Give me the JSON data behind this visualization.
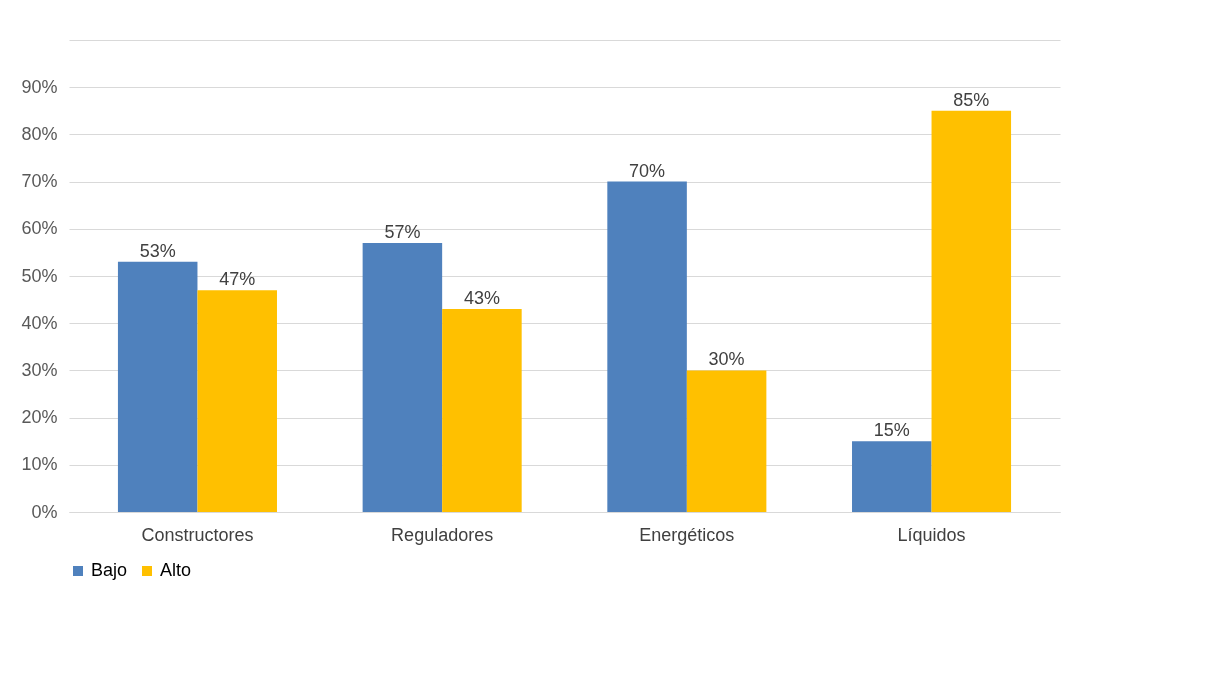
{
  "chart_data": {
    "type": "bar",
    "categories": [
      "Constructores",
      "Reguladores",
      "Energéticos",
      "Líquidos"
    ],
    "series": [
      {
        "name": "Bajo",
        "color": "#4f81bd",
        "values": [
          53,
          57,
          70,
          15
        ],
        "value_labels": [
          "53%",
          "57%",
          "70%",
          "15%"
        ]
      },
      {
        "name": "Alto",
        "color": "#ffc000",
        "values": [
          47,
          43,
          30,
          85
        ],
        "value_labels": [
          "47%",
          "43%",
          "30%",
          "85%"
        ]
      }
    ],
    "ylim": [
      0,
      100
    ],
    "yticks": [
      {
        "value": 0,
        "label": "0%"
      },
      {
        "value": 10,
        "label": "10%"
      },
      {
        "value": 20,
        "label": "20%"
      },
      {
        "value": 30,
        "label": "30%"
      },
      {
        "value": 40,
        "label": "40%"
      },
      {
        "value": 50,
        "label": "50%"
      },
      {
        "value": 60,
        "label": "60%"
      },
      {
        "value": 70,
        "label": "70%"
      },
      {
        "value": 80,
        "label": "80%"
      },
      {
        "value": 90,
        "label": "90%"
      },
      {
        "value": 100,
        "label": null
      }
    ],
    "grid": "y",
    "legend": "bottom"
  }
}
